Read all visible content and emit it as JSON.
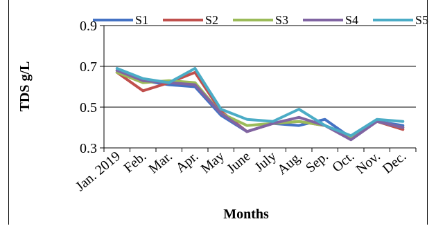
{
  "chart_data": {
    "type": "line",
    "title": "",
    "xlabel": "Months",
    "ylabel": "TDS g/L",
    "ylim": [
      0.3,
      0.9
    ],
    "yticks": [
      "0.3",
      "0.5",
      "0.7",
      "0.9"
    ],
    "ytick_values": [
      0.3,
      0.5,
      0.7,
      0.9
    ],
    "grid": "horizontal",
    "legend_position": "top",
    "categories": [
      "Jan. 2019",
      "Feb.",
      "Mar.",
      "Apr.",
      "May",
      "June",
      "July",
      "Aug.",
      "Sep.",
      "Oct.",
      "Nov.",
      "Dec."
    ],
    "series": [
      {
        "name": "S1",
        "color": "#4472C4",
        "values": [
          0.68,
          0.63,
          0.61,
          0.6,
          0.46,
          0.38,
          0.42,
          0.41,
          0.44,
          0.35,
          0.43,
          0.41
        ]
      },
      {
        "name": "S2",
        "color": "#C0504D",
        "values": [
          0.67,
          0.58,
          0.62,
          0.67,
          0.48,
          0.38,
          0.42,
          0.43,
          0.41,
          0.35,
          0.43,
          0.39
        ]
      },
      {
        "name": "S3",
        "color": "#9BBB59",
        "values": [
          0.67,
          0.62,
          0.63,
          0.62,
          0.47,
          0.41,
          0.42,
          0.43,
          0.41,
          0.35,
          0.43,
          0.4
        ]
      },
      {
        "name": "S4",
        "color": "#8064A2",
        "values": [
          0.68,
          0.63,
          0.62,
          0.61,
          0.47,
          0.38,
          0.42,
          0.45,
          0.41,
          0.34,
          0.43,
          0.4
        ]
      },
      {
        "name": "S5",
        "color": "#4BACC6",
        "values": [
          0.69,
          0.64,
          0.62,
          0.69,
          0.49,
          0.44,
          0.43,
          0.49,
          0.41,
          0.36,
          0.44,
          0.43
        ]
      }
    ]
  }
}
